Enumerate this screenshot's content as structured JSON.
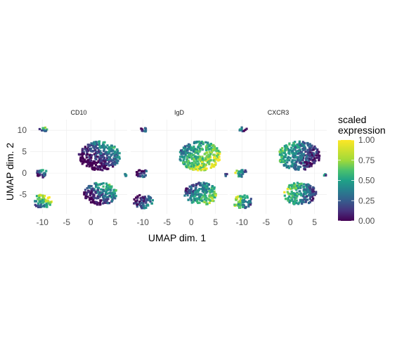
{
  "chart_data": {
    "type": "scatter",
    "panels": [
      "CD10",
      "IgD",
      "CXCR3"
    ],
    "xlabel": "UMAP dim. 1",
    "ylabel": "UMAP dim. 2",
    "x_ticks": [
      -10,
      -5,
      0,
      5
    ],
    "y_ticks": [
      10,
      5,
      0,
      -5
    ],
    "xlim": [
      -12.5,
      7.5
    ],
    "ylim": [
      -9.5,
      12.5
    ],
    "grid": true,
    "legend": {
      "title_line1": "scaled",
      "title_line2": "expression",
      "position": "right",
      "colormap": "viridis",
      "range": [
        0,
        1
      ],
      "ticks": [
        "1.00",
        "0.75",
        "0.50",
        "0.25",
        "0.00"
      ]
    },
    "clusters": [
      {
        "name": "top-left",
        "cx": -9.8,
        "cy": 10.2,
        "rx": 0.9,
        "ry": 0.5
      },
      {
        "name": "mid-left",
        "cx": -10.2,
        "cy": 0.0,
        "rx": 1.2,
        "ry": 1.0
      },
      {
        "name": "bottom-left",
        "cx": -9.9,
        "cy": -6.6,
        "rx": 2.0,
        "ry": 1.6
      },
      {
        "name": "main-upper",
        "cx": 1.8,
        "cy": 4.0,
        "rx": 4.3,
        "ry": 3.4
      },
      {
        "name": "main-lower",
        "cx": 2.0,
        "cy": -4.8,
        "rx": 3.4,
        "ry": 2.6
      },
      {
        "name": "small-right",
        "cx": 7.2,
        "cy": -0.4,
        "rx": 0.3,
        "ry": 0.3
      }
    ],
    "series": [
      {
        "panel": "CD10",
        "cluster_levels": [
          0.4,
          0.3,
          0.65,
          0.2,
          0.3,
          0.5
        ],
        "gradient": "upper-right-high"
      },
      {
        "panel": "IgD",
        "cluster_levels": [
          0.2,
          0.12,
          0.2,
          0.7,
          0.5,
          0.3
        ],
        "gradient": "lower-right-high"
      },
      {
        "panel": "CXCR3",
        "cluster_levels": [
          0.25,
          0.5,
          0.6,
          0.35,
          0.5,
          0.4
        ],
        "gradient": "left-high"
      }
    ]
  }
}
